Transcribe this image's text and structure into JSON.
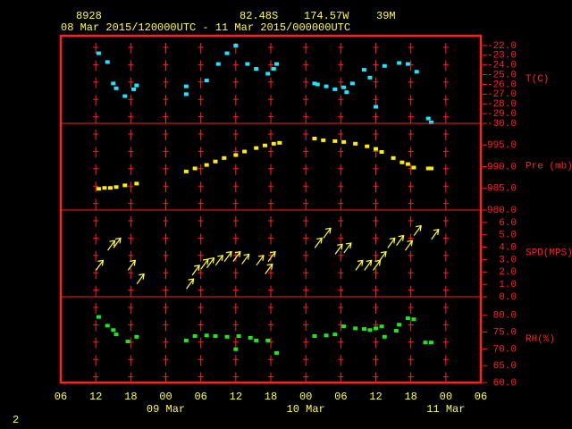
{
  "chart_data": {
    "type": "meteogram",
    "station": "8928",
    "latitude": "82.48S",
    "longitude": "174.57W",
    "elevation": "39M",
    "subtitle": "08 Mar 2015/120000UTC - 11 Mar 2015/000000UTC",
    "page_number": "2",
    "xlim": [
      6,
      78
    ],
    "xticks": [
      {
        "value": 6,
        "label": "06"
      },
      12,
      18,
      {
        "value": 24,
        "label": "00"
      },
      {
        "value": 30,
        "label": "06"
      },
      {
        "value": 36,
        "label": "12"
      },
      {
        "value": 42,
        "label": "18"
      },
      {
        "value": 48,
        "label": "00"
      },
      {
        "value": 54,
        "label": "06"
      },
      {
        "value": 60,
        "label": "12"
      },
      {
        "value": 66,
        "label": "18"
      },
      {
        "value": 72,
        "label": "00"
      },
      {
        "value": 78,
        "label": "06"
      }
    ],
    "x_date_labels": [
      {
        "value": 24,
        "label": "09 Mar"
      },
      {
        "value": 48,
        "label": "10 Mar"
      },
      {
        "value": 72,
        "label": "11 Mar"
      }
    ],
    "panels": [
      {
        "type": "scatter",
        "name": "T(C)",
        "color": "#1ee6ff",
        "ylim": [
          -30,
          -21
        ],
        "yticks": [
          {
            "value": -22,
            "label": "-22.0"
          },
          {
            "value": -23,
            "label": "-23.0"
          },
          {
            "value": -24,
            "label": "-24.0"
          },
          {
            "value": -25,
            "label": "-25.0"
          },
          {
            "value": -26,
            "label": "-26.0"
          },
          {
            "value": -27,
            "label": "-27.0"
          },
          {
            "value": -28,
            "label": "-28.0"
          },
          {
            "value": -29,
            "label": "-29.0"
          },
          {
            "value": -30,
            "label": "-30.0"
          }
        ],
        "x": [
          12.5,
          14,
          15,
          15.5,
          17,
          18.5,
          19,
          27.5,
          27.5,
          31,
          33,
          34.5,
          36,
          38,
          39.5,
          41.5,
          42.5,
          43,
          49.5,
          50,
          51.5,
          53,
          54.5,
          55,
          56,
          58,
          59,
          60,
          61.5,
          64,
          65.5,
          67,
          69,
          69.5
        ],
        "values": [
          -22.8,
          -23.7,
          -25.9,
          -26.4,
          -27.2,
          -26.5,
          -26.1,
          -26.2,
          -27.0,
          -25.6,
          -23.9,
          -22.8,
          -22.0,
          -23.9,
          -24.4,
          -24.9,
          -24.4,
          -23.9,
          -25.9,
          -26.0,
          -26.2,
          -26.5,
          -26.3,
          -26.8,
          -25.9,
          -24.5,
          -25.3,
          -28.3,
          -24.1,
          -23.8,
          -23.9,
          -24.7,
          -29.5,
          -29.9
        ]
      },
      {
        "type": "scatter",
        "name": "Pre (mb)",
        "color": "#ffee00",
        "ylim": [
          980,
          1000
        ],
        "yticks": [
          {
            "value": 980,
            "label": "980.0"
          },
          {
            "value": 985,
            "label": "985.0"
          },
          {
            "value": 990,
            "label": "990.0"
          },
          {
            "value": 995,
            "label": "995.0"
          }
        ],
        "x": [
          12.5,
          13.5,
          14.5,
          15.5,
          17,
          19,
          27.5,
          29,
          31,
          32.5,
          34,
          36,
          37.5,
          39.5,
          41,
          42.5,
          43.5,
          49.5,
          51,
          53,
          54.5,
          56.5,
          58.5,
          60,
          61,
          63,
          64.5,
          65.5,
          66.5,
          69,
          69.5
        ],
        "values": [
          984.9,
          985.1,
          985.1,
          985.3,
          985.7,
          986.1,
          988.9,
          989.6,
          990.4,
          991.2,
          992.0,
          992.7,
          993.5,
          994.3,
          994.9,
          995.3,
          995.5,
          996.5,
          996.1,
          995.9,
          995.7,
          995.3,
          994.7,
          994.1,
          993.4,
          992.0,
          991.0,
          990.6,
          989.8,
          989.6,
          989.6
        ]
      },
      {
        "type": "arrow",
        "name": "SPD(MPS)",
        "color": "#ffff3c",
        "ylim": [
          0,
          7
        ],
        "yticks": [
          {
            "value": 0,
            "label": "0.0"
          },
          {
            "value": 1,
            "label": "1.0"
          },
          {
            "value": 2,
            "label": "2.0"
          },
          {
            "value": 3,
            "label": "3.0"
          },
          {
            "value": 4,
            "label": "4.0"
          },
          {
            "value": 5,
            "label": "5.0"
          },
          {
            "value": 6,
            "label": "6.0"
          }
        ],
        "x": [
          12.5,
          14.5,
          15.5,
          18,
          19.5,
          28,
          29,
          30.5,
          31.5,
          33,
          34.5,
          36,
          37.5,
          40,
          41.5,
          42,
          50,
          51.5,
          53.5,
          55,
          57,
          58.5,
          60,
          61,
          62.5,
          64,
          65.5,
          67,
          70
        ],
        "values": [
          2.5,
          4.1,
          4.3,
          2.5,
          1.4,
          1.0,
          2.1,
          2.6,
          2.7,
          2.9,
          3.2,
          3.2,
          3.0,
          2.9,
          2.2,
          3.2,
          4.3,
          5.1,
          3.8,
          3.9,
          2.5,
          2.5,
          2.5,
          3.2,
          4.3,
          4.5,
          4.1,
          5.3,
          5.0
        ]
      },
      {
        "type": "scatter",
        "name": "RH(%)",
        "color": "#1ee61e",
        "ylim": [
          60,
          85.5
        ],
        "yticks": [
          {
            "value": 60,
            "label": "60.0"
          },
          {
            "value": 65,
            "label": "65.0"
          },
          {
            "value": 70,
            "label": "70.0"
          },
          {
            "value": 75,
            "label": "75.0"
          },
          {
            "value": 80,
            "label": "80.0"
          }
        ],
        "x": [
          12.5,
          14,
          15,
          15.5,
          17.5,
          19,
          27.5,
          29,
          31,
          32.5,
          34.5,
          36,
          36.5,
          38.5,
          39.5,
          41.5,
          43,
          49.5,
          51.5,
          53,
          54.5,
          56.5,
          58,
          59,
          60,
          61,
          61.5,
          63.5,
          64,
          65.5,
          66.5,
          68.5,
          69.5
        ],
        "values": [
          79.5,
          76.9,
          75.6,
          74.3,
          72.2,
          73.6,
          72.5,
          73.8,
          74.0,
          73.8,
          73.6,
          69.9,
          73.8,
          73.3,
          72.5,
          72.5,
          68.8,
          73.8,
          74.0,
          74.3,
          76.7,
          76.1,
          75.9,
          75.6,
          76.1,
          76.7,
          73.6,
          75.4,
          77.2,
          79.1,
          78.8,
          71.9,
          71.9
        ]
      }
    ]
  }
}
